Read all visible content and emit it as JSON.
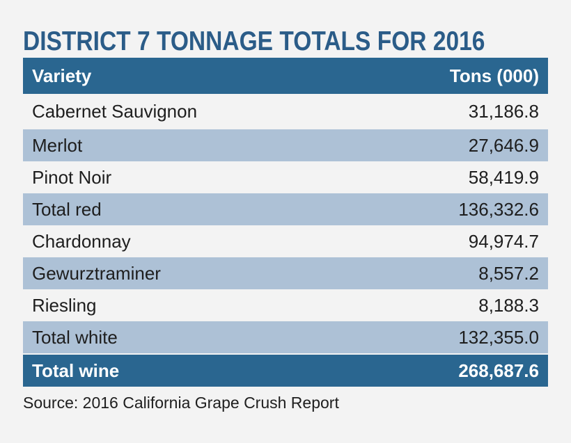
{
  "chart_data": {
    "type": "table",
    "title": "DISTRICT 7 TONNAGE TOTALS FOR 2016",
    "columns": [
      "Variety",
      "Tons (000)"
    ],
    "rows": [
      {
        "label": "Cabernet Sauvignon",
        "value": "31,186.8"
      },
      {
        "label": "Merlot",
        "value": "27,646.9"
      },
      {
        "label": "Pinot Noir",
        "value": "58,419.9"
      },
      {
        "label": "Total red",
        "value": "136,332.6"
      },
      {
        "label": "Chardonnay",
        "value": "94,974.7"
      },
      {
        "label": "Gewurztraminer",
        "value": "8,557.2"
      },
      {
        "label": "Riesling",
        "value": "8,188.3"
      },
      {
        "label": "Total white",
        "value": "132,355.0"
      }
    ],
    "total": {
      "label": "Total wine",
      "value": "268,687.6"
    },
    "source": "Source: 2016 California Grape Crush Report"
  },
  "colors": {
    "header_bg": "#2a6690",
    "stripe_bg": "#adc1d6",
    "title_color": "#2b5c88"
  }
}
